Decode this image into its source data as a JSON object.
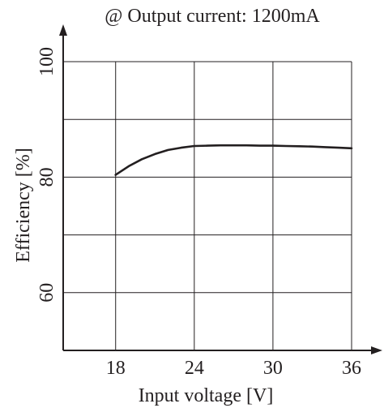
{
  "chart_data": {
    "type": "line",
    "title": "@ Output current: 1200mA",
    "xlabel": "Input voltage [V]",
    "ylabel": "Efficiency [%]",
    "xlim": [
      14,
      36
    ],
    "ylim": [
      50,
      100
    ],
    "x_ticks": [
      18,
      24,
      30,
      36
    ],
    "y_ticks": [
      60,
      80,
      100
    ],
    "x_grid": [
      18,
      24,
      30,
      36
    ],
    "y_grid": [
      60,
      70,
      80,
      90,
      100
    ],
    "grid": true,
    "series": [
      {
        "x": [
          18,
          19,
          20,
          21,
          22,
          23,
          24,
          25,
          26,
          27,
          28,
          29,
          30,
          31,
          32,
          33,
          34,
          35,
          36
        ],
        "y": [
          80.4,
          81.9,
          83.1,
          84.0,
          84.7,
          85.1,
          85.4,
          85.45,
          85.5,
          85.5,
          85.5,
          85.45,
          85.45,
          85.4,
          85.35,
          85.3,
          85.2,
          85.1,
          85.0
        ]
      }
    ],
    "colors": {
      "ink": "#231f20"
    }
  }
}
